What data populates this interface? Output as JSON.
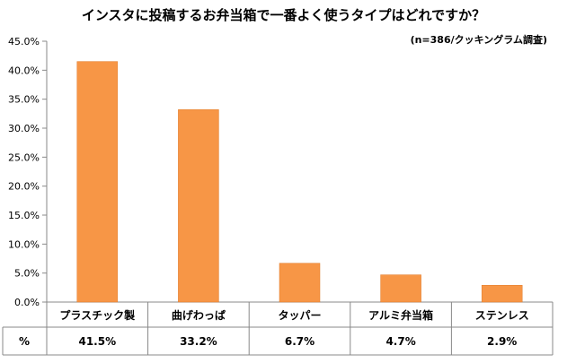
{
  "chart_data": {
    "type": "bar",
    "title": "インスタに投稿するお弁当箱で一番よく使うタイプはどれですか？",
    "note": "(n=386/クッキングラム調査)",
    "categories": [
      "プラスチック製",
      "曲げわっぱ",
      "タッパー",
      "アルミ弁当箱",
      "ステンレス"
    ],
    "values": [
      41.5,
      33.2,
      6.7,
      4.7,
      2.9
    ],
    "value_labels": [
      "41.5%",
      "33.2%",
      "6.7%",
      "4.7%",
      "2.9%"
    ],
    "table_row_header": "%",
    "yticks": [
      "0.0%",
      "5.0%",
      "10.0%",
      "15.0%",
      "20.0%",
      "25.0%",
      "30.0%",
      "35.0%",
      "40.0%",
      "45.0%"
    ],
    "ylim": [
      0,
      45
    ],
    "ystep": 5,
    "xlabel": "",
    "ylabel": "",
    "grid": false,
    "bar_color": "#F79646"
  }
}
